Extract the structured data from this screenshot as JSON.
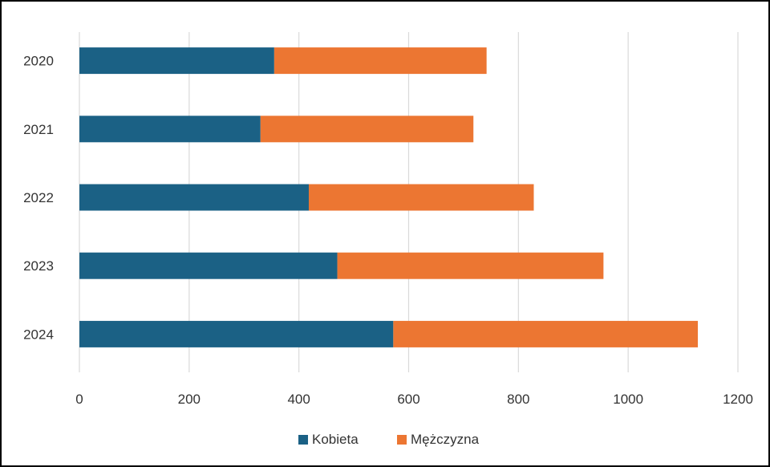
{
  "chart_data": {
    "type": "bar",
    "orientation": "horizontal",
    "stacked": true,
    "categories": [
      "2020",
      "2021",
      "2022",
      "2023",
      "2024"
    ],
    "series": [
      {
        "name": "Kobieta",
        "color": "#1b6185",
        "values": [
          355,
          330,
          418,
          470,
          572
        ]
      },
      {
        "name": "Mężczyzna",
        "color": "#ec7632",
        "values": [
          387,
          388,
          410,
          485,
          555
        ]
      }
    ],
    "xlim": [
      0,
      1200
    ],
    "xticks": [
      "0",
      "200",
      "400",
      "600",
      "800",
      "1000",
      "1200"
    ],
    "grid": true,
    "legend_position": "bottom"
  }
}
